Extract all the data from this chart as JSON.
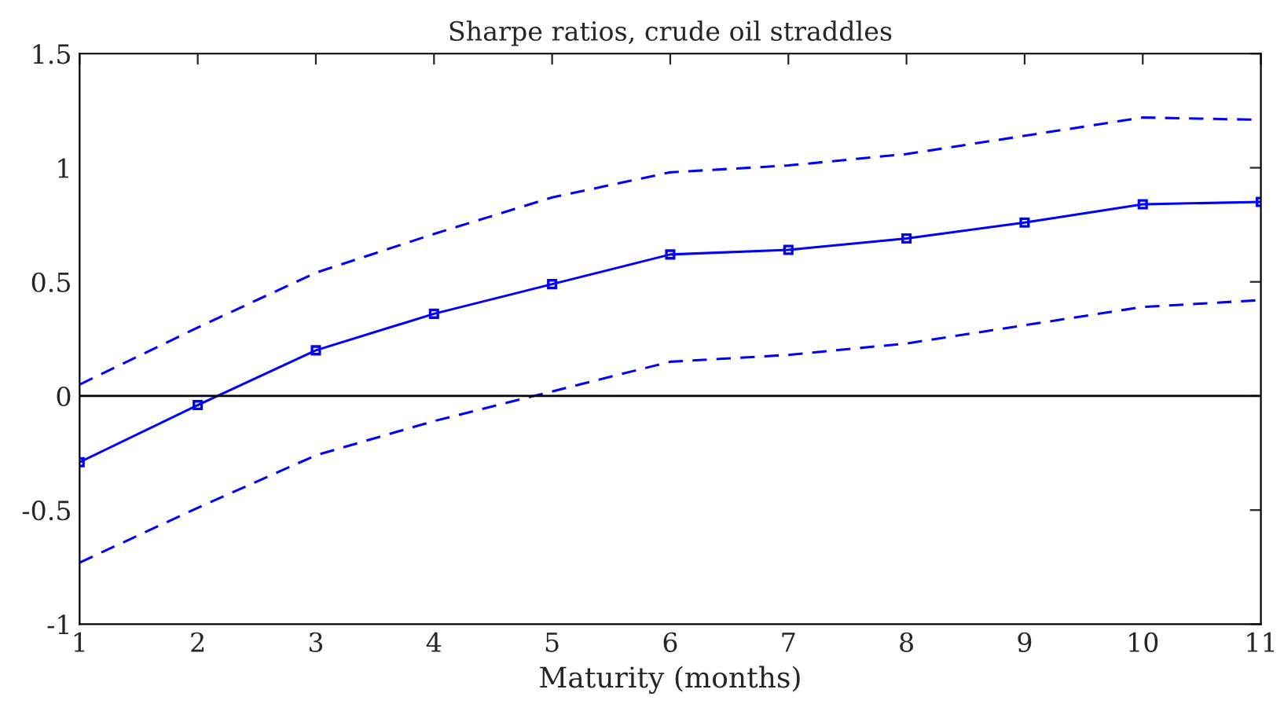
{
  "chart_data": {
    "type": "line",
    "title": "Sharpe ratios, crude oil straddles",
    "xlabel": "Maturity (months)",
    "x": [
      1,
      2,
      3,
      4,
      5,
      6,
      7,
      8,
      9,
      10,
      11
    ],
    "series": [
      {
        "color": "#0000ff",
        "marker": "square",
        "line_style": "solid",
        "values": [
          -0.29,
          -0.04,
          0.2,
          0.36,
          0.49,
          0.62,
          0.64,
          0.69,
          0.76,
          0.84,
          0.85
        ]
      },
      {
        "color": "#0000ff",
        "marker": "none",
        "line_style": "dashed",
        "values": [
          0.05,
          0.3,
          0.54,
          0.71,
          0.87,
          0.98,
          1.01,
          1.06,
          1.14,
          1.22,
          1.21
        ]
      },
      {
        "color": "#0000ff",
        "marker": "none",
        "line_style": "dashed",
        "values": [
          -0.73,
          -0.49,
          -0.26,
          -0.11,
          0.02,
          0.15,
          0.18,
          0.23,
          0.31,
          0.39,
          0.42
        ]
      }
    ],
    "ref_lines": [
      {
        "axis": "y",
        "value": 0,
        "color": "#000000",
        "line_style": "solid"
      }
    ],
    "xlim": [
      1,
      11
    ],
    "xticks": [
      1,
      2,
      3,
      4,
      5,
      6,
      7,
      8,
      9,
      10,
      11
    ],
    "ylim": [
      -1,
      1.5
    ],
    "yticks": [
      -1,
      -0.5,
      0,
      0.5,
      1,
      1.5
    ],
    "grid": false,
    "legend": false
  }
}
